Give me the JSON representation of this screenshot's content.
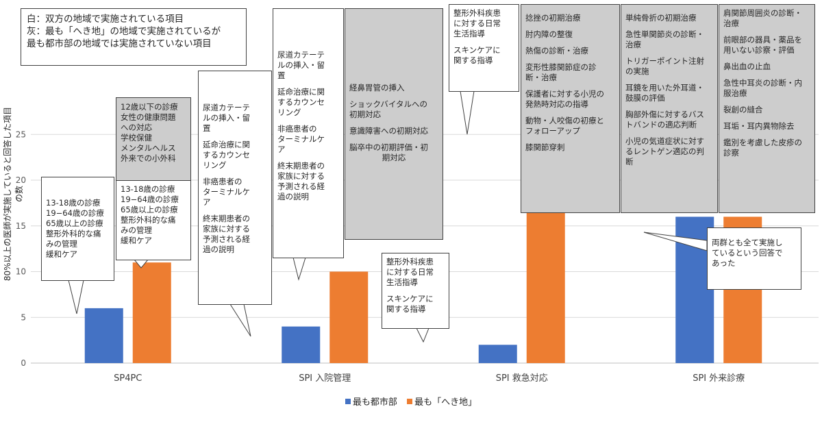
{
  "colors": {
    "series1": "#4472c4",
    "series2": "#ed7d31",
    "gray_box": "#cdcdcd",
    "grid": "#d9d9d9"
  },
  "chart_data": {
    "type": "bar",
    "categories": [
      "SP4PC",
      "SPI 入院管理",
      "SPI 救急対応",
      "SPI 外来診療"
    ],
    "series": [
      {
        "name": "最も都市部",
        "values": [
          6,
          4,
          2,
          16
        ]
      },
      {
        "name": "最も「へき地」",
        "values": [
          11,
          10,
          23,
          16
        ]
      }
    ],
    "yticks": [
      0,
      5,
      10,
      15,
      20,
      25
    ],
    "ylabel": "80%以上の医師が実施していると回答した項目の数",
    "xlabel": "",
    "ylim": [
      0,
      25
    ],
    "grid": true,
    "legend_position": "bottom"
  },
  "annotations": {
    "legend_box": [
      "白：双方の地域で実施されている項目",
      "灰：最も「へき地」の地域で実施されているが",
      "最も都市部の地域では実施されていない項目"
    ],
    "sp4pc_urban": [
      "13-18歳の診療",
      "19−64歳の診療",
      "65歳以上の診療",
      "整形外科的な痛",
      "みの管理",
      "緩和ケア"
    ],
    "sp4pc_rural_gray": [
      "12歳以下の診療",
      "女性の健康問題",
      "への対応",
      "学校保健",
      "メンタルヘルス",
      "外来での小外科"
    ],
    "sp4pc_rural_white": [
      "13-18歳の診療",
      "19−64歳の診療",
      "65歳以上の診療",
      "整形外科的な痛",
      "みの管理",
      "緩和ケア"
    ],
    "inpatient_urban": [
      "尿道カテーテ",
      "ルの挿入・留",
      "置",
      "",
      "延命治療に関",
      "するカウンセ",
      "リング",
      "",
      "非癌患者の",
      "ターミナルケ",
      "ア",
      "",
      "終末期患者の",
      "家族に対する",
      "予測される経",
      "過の説明"
    ],
    "inpatient_rural_white": [
      "尿道カテーテ",
      "ルの挿入・留",
      "置",
      "",
      "延命治療に関",
      "するカウンセ",
      "リング",
      "",
      "非癌患者の",
      "ターミナルケ",
      "ア",
      "",
      "終末期患者の",
      "家族に対する",
      "予測される経",
      "過の説明"
    ],
    "inpatient_rural_gray": [
      "経鼻胃管の挿入",
      "",
      "ショックバイタルへの",
      "初期対応",
      "",
      "意識障害への初期対応",
      "",
      "脳卒中の初期評価・初",
      "期対応"
    ],
    "er_urban": [
      "整形外科疾患",
      "に対する日常",
      "生活指導",
      "",
      "スキンケアに",
      "関する指導"
    ],
    "er_rural_white": [
      "整形外科疾患",
      "に対する日常",
      "生活指導",
      "",
      "スキンケアに",
      "関する指導"
    ],
    "er_rural_gray1": [
      "捻挫の初期治療",
      "",
      "肘内障の整復",
      "",
      "熱傷の診断・治療",
      "",
      "変形性膝関節症の診",
      "断・治療",
      "",
      "保護者に対する小児の",
      "発熱時対応の指導",
      "",
      "動物・人咬傷の初療と",
      "フォローアップ",
      "",
      "膝関節穿刺"
    ],
    "er_rural_gray2": [
      "単純骨折の初期治療",
      "",
      "急性単関節炎の診断・",
      "治療",
      "",
      "トリガーポイント注射",
      "の実施",
      "",
      "耳鏡を用いた外耳道・",
      "鼓膜の評価",
      "",
      "胸部外傷に対するバス",
      "トバンドの適応判断",
      "",
      "小児の気道症状に対す",
      "るレントゲン適応の判",
      "断"
    ],
    "er_rural_gray3": [
      "肩関節周囲炎の診断・",
      "治療",
      "",
      "前眼部の器具・薬品を",
      "用いない診察・評価",
      "",
      "鼻出血の止血",
      "",
      "急性中耳炎の診断・内",
      "服治療",
      "",
      "裂創の縫合",
      "",
      "耳垢・耳内異物除去",
      "",
      "鑑別を考慮した皮疹の",
      "診察"
    ],
    "outpatient_note": [
      "両群とも全て実施し",
      "ているという回答で",
      "あった"
    ]
  }
}
